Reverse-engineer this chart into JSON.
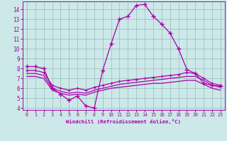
{
  "xlabel": "Windchill (Refroidissement éolien,°C)",
  "xlim": [
    -0.5,
    23.5
  ],
  "ylim": [
    3.8,
    14.8
  ],
  "xticks": [
    0,
    1,
    2,
    3,
    4,
    5,
    6,
    7,
    8,
    9,
    10,
    11,
    12,
    13,
    14,
    15,
    16,
    17,
    18,
    19,
    20,
    21,
    22,
    23
  ],
  "yticks": [
    4,
    5,
    6,
    7,
    8,
    9,
    10,
    11,
    12,
    13,
    14
  ],
  "background_color": "#cce8e8",
  "line_color": "#aa00aa",
  "grid_color": "#99bbbb",
  "line1_x": [
    0,
    1,
    2,
    3,
    4,
    5,
    6,
    7,
    8,
    9,
    10,
    11,
    12,
    13,
    14,
    15,
    16,
    17,
    18,
    19,
    20,
    21,
    22,
    23
  ],
  "line1_y": [
    8.2,
    8.2,
    8.0,
    6.0,
    5.4,
    4.8,
    5.2,
    4.2,
    4.0,
    7.8,
    10.5,
    13.0,
    13.3,
    14.4,
    14.5,
    13.3,
    12.5,
    11.6,
    10.0,
    7.9,
    7.5,
    6.5,
    6.3,
    6.2
  ],
  "line2_x": [
    0,
    1,
    2,
    3,
    4,
    5,
    6,
    7,
    8,
    9,
    10,
    11,
    12,
    13,
    14,
    15,
    16,
    17,
    18,
    19,
    20,
    21,
    22,
    23
  ],
  "line2_y": [
    7.8,
    7.8,
    7.6,
    6.3,
    6.0,
    5.8,
    6.0,
    5.8,
    6.1,
    6.3,
    6.5,
    6.7,
    6.8,
    6.9,
    7.0,
    7.1,
    7.2,
    7.3,
    7.4,
    7.6,
    7.5,
    7.0,
    6.5,
    6.3
  ],
  "line3_x": [
    0,
    1,
    2,
    3,
    4,
    5,
    6,
    7,
    8,
    9,
    10,
    11,
    12,
    13,
    14,
    15,
    16,
    17,
    18,
    19,
    20,
    21,
    22,
    23
  ],
  "line3_y": [
    7.5,
    7.5,
    7.3,
    6.0,
    5.7,
    5.5,
    5.6,
    5.5,
    5.8,
    6.0,
    6.2,
    6.4,
    6.5,
    6.6,
    6.7,
    6.8,
    6.9,
    7.0,
    7.1,
    7.2,
    7.2,
    6.8,
    6.3,
    6.1
  ],
  "line4_x": [
    0,
    1,
    2,
    3,
    4,
    5,
    6,
    7,
    8,
    9,
    10,
    11,
    12,
    13,
    14,
    15,
    16,
    17,
    18,
    19,
    20,
    21,
    22,
    23
  ],
  "line4_y": [
    7.2,
    7.2,
    7.0,
    5.8,
    5.5,
    5.3,
    5.4,
    5.3,
    5.6,
    5.8,
    6.0,
    6.1,
    6.2,
    6.3,
    6.4,
    6.5,
    6.5,
    6.6,
    6.7,
    6.8,
    6.8,
    6.4,
    6.0,
    5.8
  ]
}
